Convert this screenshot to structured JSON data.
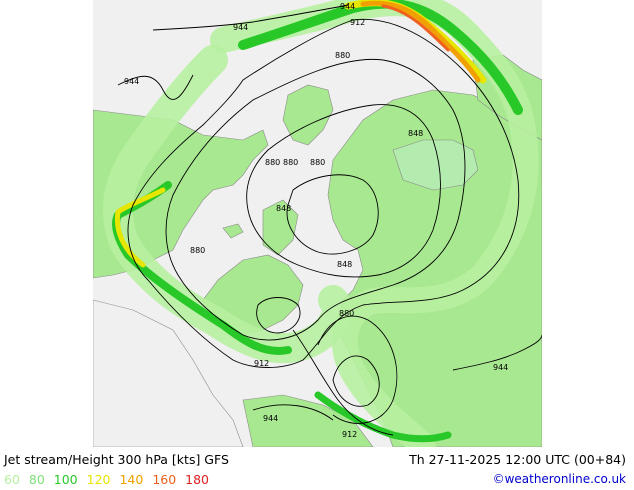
{
  "title": "Jet stream/Height 300 hPa [kts] GFS",
  "valid_time": "Th 27-11-2025 12:00 UTC (00+84)",
  "credit": "©weatheronline.co.uk",
  "legend": [
    {
      "value": "60",
      "color": "#b7f0a0"
    },
    {
      "value": "80",
      "color": "#7fe07a"
    },
    {
      "value": "100",
      "color": "#28c828"
    },
    {
      "value": "120",
      "color": "#e6e600"
    },
    {
      "value": "140",
      "color": "#f0a000"
    },
    {
      "value": "160",
      "color": "#f06020"
    },
    {
      "value": "180",
      "color": "#e02020"
    }
  ],
  "contour_labels": [
    "944",
    "944",
    "912",
    "944",
    "880",
    "848",
    "880",
    "880",
    "880",
    "848",
    "880",
    "848",
    "880",
    "912",
    "944",
    "944",
    "912"
  ],
  "colors": {
    "land": "#a8e890",
    "background": "#f0f0f0",
    "border": "#909090",
    "contour": "#000000"
  }
}
